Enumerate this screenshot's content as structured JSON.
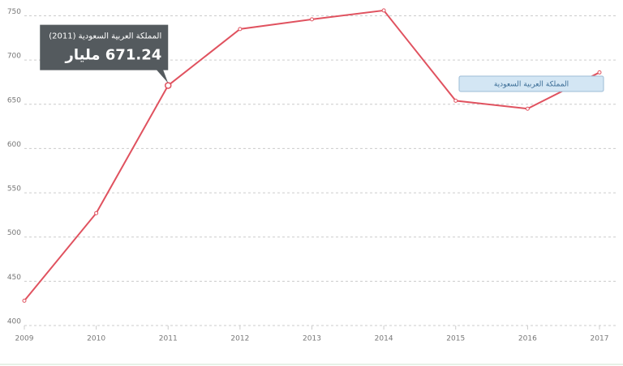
{
  "chart_data": {
    "type": "line",
    "x": [
      2009,
      2010,
      2011,
      2012,
      2013,
      2014,
      2015,
      2016,
      2017
    ],
    "xlim": [
      2009,
      2017
    ],
    "xticks": [
      2009,
      2010,
      2011,
      2012,
      2013,
      2014,
      2015,
      2016,
      2017
    ],
    "ylim": [
      400,
      766
    ],
    "yticks": [
      400,
      450,
      500,
      550,
      600,
      650,
      700,
      750
    ],
    "grid": true,
    "series": [
      {
        "name": "المملكة العربية السعودية",
        "color": "#e0525f",
        "values": [
          428,
          527,
          671.24,
          735,
          746,
          756,
          654,
          645,
          686
        ],
        "value_labels": [
          null,
          null,
          "671.24 مليار",
          null,
          null,
          null,
          null,
          null,
          null
        ]
      }
    ],
    "tooltip_title": "المملكة العربية السعودية (2011)",
    "legend": "top-right"
  }
}
